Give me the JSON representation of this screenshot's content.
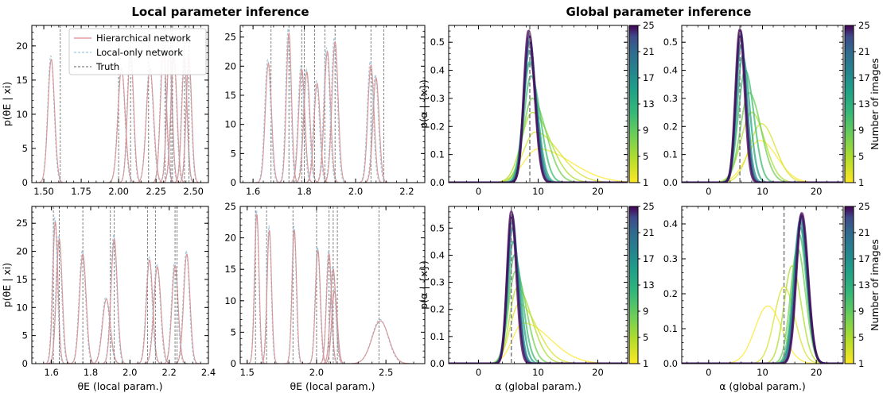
{
  "titles": {
    "local": "Local parameter inference",
    "global": "Global parameter inference"
  },
  "legend": {
    "hier": "Hierarchical network",
    "local": "Local-only network",
    "truth": "Truth"
  },
  "colors": {
    "hier": "#d98b8b",
    "local": "#9ec9e0",
    "truth": "#7f7f7f"
  },
  "axis_labels": {
    "local_y": "p(θE | xi)",
    "local_x": "θE (local param.)",
    "global_y": "p(α | {x})",
    "global_x": "α (global param.)",
    "colorbar": "Number of images"
  },
  "colorbar": {
    "min": 1,
    "max": 25,
    "ticks": [
      "1",
      "5",
      "9",
      "13",
      "17",
      "21",
      "25"
    ]
  },
  "chart_data": [
    {
      "id": "local-top-left",
      "type": "line",
      "xlim": [
        1.42,
        2.6
      ],
      "ylim": [
        0,
        23
      ],
      "xticks": [
        1.5,
        1.75,
        2.0,
        2.25,
        2.5
      ],
      "xticklabels": [
        "1.50",
        "1.75",
        "2.00",
        "2.25",
        "2.50"
      ],
      "yticks": [
        0,
        5,
        10,
        15,
        20
      ],
      "yticklabels": [
        "0",
        "5",
        "10",
        "15",
        "20"
      ],
      "ylabel": "p(θE | xi)",
      "xlabel": "",
      "peaks": [
        {
          "mu": 1.55,
          "sigma": 0.022,
          "amp": 18,
          "truth": 1.61
        },
        {
          "mu": 2.02,
          "sigma": 0.024,
          "amp": 16.7,
          "truth": 2.0
        },
        {
          "mu": 2.08,
          "sigma": 0.02,
          "amp": 19.5,
          "truth": 2.08
        },
        {
          "mu": 2.21,
          "sigma": 0.024,
          "amp": 16.7,
          "truth": 2.2
        },
        {
          "mu": 2.3,
          "sigma": 0.02,
          "amp": 19.5,
          "truth": 2.31
        },
        {
          "mu": 2.34,
          "sigma": 0.018,
          "amp": 19.3,
          "truth": 2.35
        },
        {
          "mu": 2.37,
          "sigma": 0.02,
          "amp": 18.3,
          "truth": 2.36
        },
        {
          "mu": 2.44,
          "sigma": 0.018,
          "amp": 18,
          "truth": 2.44
        },
        {
          "mu": 2.47,
          "sigma": 0.018,
          "amp": 18.3,
          "truth": 2.47
        }
      ]
    },
    {
      "id": "local-top-right",
      "type": "line",
      "xlim": [
        1.55,
        2.27
      ],
      "ylim": [
        0,
        27
      ],
      "xticks": [
        1.6,
        1.8,
        2.0,
        2.2
      ],
      "xticklabels": [
        "1.6",
        "1.8",
        "2.0",
        "2.2"
      ],
      "yticks": [
        0,
        5,
        10,
        15,
        20,
        25
      ],
      "yticklabels": [
        "0",
        "5",
        "10",
        "15",
        "20",
        "25"
      ],
      "ylabel": "",
      "xlabel": "",
      "peaks": [
        {
          "mu": 1.66,
          "sigma": 0.012,
          "amp": 20.5,
          "truth": 1.67
        },
        {
          "mu": 1.74,
          "sigma": 0.01,
          "amp": 25.7,
          "truth": 1.74
        },
        {
          "mu": 1.79,
          "sigma": 0.012,
          "amp": 19.5,
          "truth": 1.79
        },
        {
          "mu": 1.81,
          "sigma": 0.012,
          "amp": 19,
          "truth": 1.8
        },
        {
          "mu": 1.85,
          "sigma": 0.012,
          "amp": 17,
          "truth": 1.84
        },
        {
          "mu": 1.89,
          "sigma": 0.012,
          "amp": 22.5,
          "truth": 1.88
        },
        {
          "mu": 1.92,
          "sigma": 0.012,
          "amp": 24.2,
          "truth": 1.92
        },
        {
          "mu": 2.06,
          "sigma": 0.012,
          "amp": 20.2,
          "truth": 2.06
        },
        {
          "mu": 2.08,
          "sigma": 0.012,
          "amp": 18,
          "truth": 2.11
        }
      ]
    },
    {
      "id": "local-bottom-left",
      "type": "line",
      "xlim": [
        1.5,
        2.4
      ],
      "ylim": [
        0,
        28
      ],
      "xticks": [
        1.6,
        1.8,
        2.0,
        2.2,
        2.4
      ],
      "xticklabels": [
        "1.6",
        "1.8",
        "2.0",
        "2.2",
        "2.4"
      ],
      "yticks": [
        0,
        5,
        10,
        15,
        20,
        25
      ],
      "yticklabels": [
        "0",
        "5",
        "10",
        "15",
        "20",
        "25"
      ],
      "ylabel": "p(θE | xi)",
      "xlabel": "θE (local param.)",
      "peaks": [
        {
          "mu": 1.62,
          "sigma": 0.013,
          "amp": 25.2,
          "truth": 1.61
        },
        {
          "mu": 1.64,
          "sigma": 0.015,
          "amp": 22.2,
          "truth": 1.64
        },
        {
          "mu": 1.76,
          "sigma": 0.017,
          "amp": 19.5,
          "truth": 1.76
        },
        {
          "mu": 1.88,
          "sigma": 0.02,
          "amp": 11.5,
          "truth": 1.9
        },
        {
          "mu": 1.92,
          "sigma": 0.016,
          "amp": 22.2,
          "truth": 1.92
        },
        {
          "mu": 2.1,
          "sigma": 0.016,
          "amp": 18.5,
          "truth": 2.09
        },
        {
          "mu": 2.14,
          "sigma": 0.018,
          "amp": 17.2,
          "truth": 2.13
        },
        {
          "mu": 2.23,
          "sigma": 0.016,
          "amp": 17.5,
          "truth": 2.23
        },
        {
          "mu": 2.29,
          "sigma": 0.016,
          "amp": 19.5,
          "truth": 2.24
        }
      ]
    },
    {
      "id": "local-bottom-right",
      "type": "line",
      "xlim": [
        1.45,
        2.78
      ],
      "ylim": [
        0,
        25
      ],
      "xticks": [
        1.5,
        2.0,
        2.5
      ],
      "xticklabels": [
        "1.5",
        "2.0",
        "2.5"
      ],
      "yticks": [
        0,
        5,
        10,
        15,
        20,
        25
      ],
      "yticklabels": [
        "0",
        "5",
        "10",
        "15",
        "20",
        "25"
      ],
      "ylabel": "",
      "xlabel": "θE (local param.)",
      "peaks": [
        {
          "mu": 1.57,
          "sigma": 0.016,
          "amp": 23.7,
          "truth": 1.56
        },
        {
          "mu": 1.66,
          "sigma": 0.016,
          "amp": 21.2,
          "truth": 1.64
        },
        {
          "mu": 1.84,
          "sigma": 0.016,
          "amp": 21.2,
          "truth": 1.83
        },
        {
          "mu": 2.01,
          "sigma": 0.018,
          "amp": 18,
          "truth": 2.0
        },
        {
          "mu": 2.09,
          "sigma": 0.018,
          "amp": 17.5,
          "truth": 2.09
        },
        {
          "mu": 2.12,
          "sigma": 0.02,
          "amp": 15,
          "truth": 2.12
        },
        {
          "mu": 2.13,
          "sigma": 0.02,
          "amp": 11.5,
          "truth": 2.15
        },
        {
          "mu": 2.46,
          "sigma": 0.06,
          "amp": 6.8,
          "truth": 2.45
        }
      ]
    },
    {
      "id": "global-top-left",
      "type": "line",
      "xlim": [
        -5,
        25
      ],
      "ylim": [
        0,
        0.56
      ],
      "xticks": [
        0,
        10,
        20
      ],
      "xticklabels": [
        "0",
        "10",
        "20"
      ],
      "yticks": [
        0,
        0.1,
        0.2,
        0.3,
        0.4,
        0.5
      ],
      "yticklabels": [
        "0.0",
        "0.1",
        "0.2",
        "0.3",
        "0.4",
        "0.5"
      ],
      "ylabel": "p(α | {x})",
      "xlabel": "",
      "truth": 8.6,
      "curves": [
        {
          "n": 1,
          "mu": 10.0,
          "sigL": 2.4,
          "sigR": 5.5,
          "amp": 0.12
        },
        {
          "n": 3,
          "mu": 9.5,
          "sigL": 2.0,
          "sigR": 4.0,
          "amp": 0.18
        },
        {
          "n": 5,
          "mu": 9.0,
          "sigL": 1.8,
          "sigR": 3.0,
          "amp": 0.25
        },
        {
          "n": 8,
          "mu": 9.0,
          "sigL": 1.5,
          "sigR": 2.3,
          "amp": 0.3
        },
        {
          "n": 11,
          "mu": 8.8,
          "sigL": 1.2,
          "sigR": 1.6,
          "amp": 0.38
        },
        {
          "n": 14,
          "mu": 8.6,
          "sigL": 1.1,
          "sigR": 1.3,
          "amp": 0.43
        },
        {
          "n": 17,
          "mu": 8.5,
          "sigL": 0.95,
          "sigR": 1.2,
          "amp": 0.47
        },
        {
          "n": 20,
          "mu": 8.5,
          "sigL": 0.9,
          "sigR": 1.1,
          "amp": 0.5
        },
        {
          "n": 23,
          "mu": 8.5,
          "sigL": 0.85,
          "sigR": 1.0,
          "amp": 0.52
        },
        {
          "n": 25,
          "mu": 8.4,
          "sigL": 0.8,
          "sigR": 1.0,
          "amp": 0.54
        }
      ]
    },
    {
      "id": "global-top-right",
      "type": "line",
      "xlim": [
        -5,
        25
      ],
      "ylim": [
        0,
        0.56
      ],
      "xticks": [
        0,
        10,
        20
      ],
      "xticklabels": [
        "0",
        "10",
        "20"
      ],
      "yticks": [
        0,
        0.1,
        0.2,
        0.3,
        0.4,
        0.5
      ],
      "yticklabels": [
        "0.0",
        "0.1",
        "0.2",
        "0.3",
        "0.4",
        "0.5"
      ],
      "ylabel": "",
      "xlabel": "",
      "truth": 5.8,
      "curves": [
        {
          "n": 1,
          "mu": 9.5,
          "sigL": 2.5,
          "sigR": 3.2,
          "amp": 0.15
        },
        {
          "n": 3,
          "mu": 9.8,
          "sigL": 2.2,
          "sigR": 2.6,
          "amp": 0.21
        },
        {
          "n": 5,
          "mu": 8.0,
          "sigL": 2.0,
          "sigR": 2.4,
          "amp": 0.25
        },
        {
          "n": 8,
          "mu": 7.5,
          "sigL": 1.6,
          "sigR": 2.2,
          "amp": 0.32
        },
        {
          "n": 11,
          "mu": 6.8,
          "sigL": 1.3,
          "sigR": 1.6,
          "amp": 0.4
        },
        {
          "n": 14,
          "mu": 6.3,
          "sigL": 1.0,
          "sigR": 1.3,
          "amp": 0.45
        },
        {
          "n": 17,
          "mu": 6.0,
          "sigL": 0.9,
          "sigR": 1.1,
          "amp": 0.49
        },
        {
          "n": 20,
          "mu": 5.9,
          "sigL": 0.85,
          "sigR": 1.0,
          "amp": 0.52
        },
        {
          "n": 23,
          "mu": 5.9,
          "sigL": 0.8,
          "sigR": 0.95,
          "amp": 0.54
        },
        {
          "n": 25,
          "mu": 5.8,
          "sigL": 0.8,
          "sigR": 0.9,
          "amp": 0.545
        }
      ]
    },
    {
      "id": "global-bottom-left",
      "type": "line",
      "xlim": [
        -5,
        25
      ],
      "ylim": [
        0,
        0.58
      ],
      "xticks": [
        0,
        10,
        20
      ],
      "xticklabels": [
        "0",
        "10",
        "20"
      ],
      "yticks": [
        0,
        0.1,
        0.2,
        0.3,
        0.4,
        0.5
      ],
      "yticklabels": [
        "0.0",
        "0.1",
        "0.2",
        "0.3",
        "0.4",
        "0.5"
      ],
      "ylabel": "p(α | {x})",
      "xlabel": "α (global param.)",
      "truth": 5.5,
      "curves": [
        {
          "n": 1,
          "mu": 7.5,
          "sigL": 1.8,
          "sigR": 4.5,
          "amp": 0.15
        },
        {
          "n": 3,
          "mu": 6.8,
          "sigL": 1.5,
          "sigR": 3.0,
          "amp": 0.22
        },
        {
          "n": 5,
          "mu": 6.5,
          "sigL": 1.3,
          "sigR": 2.4,
          "amp": 0.28
        },
        {
          "n": 8,
          "mu": 6.2,
          "sigL": 1.2,
          "sigR": 1.8,
          "amp": 0.34
        },
        {
          "n": 11,
          "mu": 6.0,
          "sigL": 1.0,
          "sigR": 1.4,
          "amp": 0.4
        },
        {
          "n": 14,
          "mu": 5.8,
          "sigL": 0.9,
          "sigR": 1.2,
          "amp": 0.45
        },
        {
          "n": 17,
          "mu": 5.7,
          "sigL": 0.85,
          "sigR": 1.0,
          "amp": 0.5
        },
        {
          "n": 20,
          "mu": 5.6,
          "sigL": 0.8,
          "sigR": 0.95,
          "amp": 0.53
        },
        {
          "n": 23,
          "mu": 5.6,
          "sigL": 0.75,
          "sigR": 0.9,
          "amp": 0.55
        },
        {
          "n": 25,
          "mu": 5.5,
          "sigL": 0.7,
          "sigR": 0.85,
          "amp": 0.56
        }
      ]
    },
    {
      "id": "global-bottom-right",
      "type": "line",
      "xlim": [
        -5,
        25
      ],
      "ylim": [
        0,
        0.45
      ],
      "xticks": [
        0,
        10,
        20
      ],
      "xticklabels": [
        "0",
        "10",
        "20"
      ],
      "yticks": [
        0,
        0.1,
        0.2,
        0.3,
        0.4
      ],
      "yticklabels": [
        "0.0",
        "0.1",
        "0.2",
        "0.3",
        "0.4"
      ],
      "ylabel": "",
      "xlabel": "α (global param.)",
      "truth": 14.0,
      "curves": [
        {
          "n": 1,
          "mu": 11.0,
          "sigL": 2.4,
          "sigR": 2.6,
          "amp": 0.165
        },
        {
          "n": 3,
          "mu": 14.0,
          "sigL": 1.8,
          "sigR": 2.0,
          "amp": 0.22
        },
        {
          "n": 5,
          "mu": 15.5,
          "sigL": 1.5,
          "sigR": 1.7,
          "amp": 0.28
        },
        {
          "n": 8,
          "mu": 16.5,
          "sigL": 1.3,
          "sigR": 1.5,
          "amp": 0.33
        },
        {
          "n": 11,
          "mu": 16.8,
          "sigL": 1.2,
          "sigR": 1.4,
          "amp": 0.37
        },
        {
          "n": 14,
          "mu": 17.0,
          "sigL": 1.15,
          "sigR": 1.3,
          "amp": 0.39
        },
        {
          "n": 17,
          "mu": 17.0,
          "sigL": 1.1,
          "sigR": 1.25,
          "amp": 0.41
        },
        {
          "n": 20,
          "mu": 17.2,
          "sigL": 1.05,
          "sigR": 1.2,
          "amp": 0.42
        },
        {
          "n": 23,
          "mu": 17.2,
          "sigL": 1.0,
          "sigR": 1.2,
          "amp": 0.425
        },
        {
          "n": 25,
          "mu": 17.3,
          "sigL": 1.0,
          "sigR": 1.15,
          "amp": 0.43
        }
      ]
    }
  ]
}
